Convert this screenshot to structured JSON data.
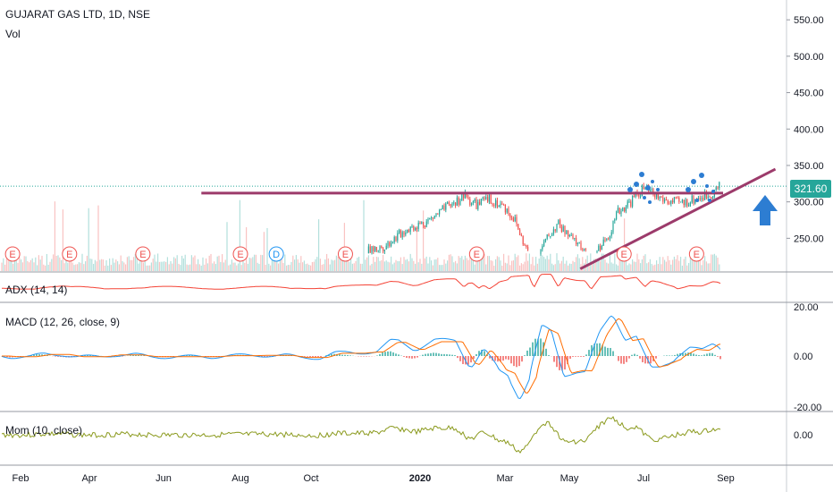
{
  "header": {
    "title": "GUJARAT GAS LTD, 1D, NSE",
    "volume_label": "Vol"
  },
  "price_badge": "321.60",
  "colors": {
    "candle_up": "#26a69a",
    "candle_down": "#ef5350",
    "trendline": "#9c3b6b",
    "arrow": "#2d7dd2",
    "adx": "#f44336",
    "macd": "#2196f3",
    "signal": "#ff6d00",
    "momentum": "#8b9a1e",
    "last_price": "#26a69a",
    "dots": "#2d7dd2"
  },
  "panes": {
    "adx": {
      "label": "ADX (14, 14)"
    },
    "macd": {
      "label": "MACD (12, 26, close, 9)",
      "ticks": [
        "20.00",
        "0.00",
        "-20.00"
      ]
    },
    "mom": {
      "label": "Mom (10, close)",
      "ticks": [
        "0.00"
      ]
    }
  },
  "chart_data": {
    "type": "line",
    "title": "GUJARAT GAS LTD, 1D, NSE",
    "y_ticks": [
      "550.00",
      "500.00",
      "450.00",
      "400.00",
      "350.00",
      "300.00",
      "250.00"
    ],
    "ylim": [
      205,
      560
    ],
    "x_ticks": [
      "Feb",
      "Apr",
      "Jun",
      "Aug",
      "Oct",
      "2020",
      "Mar",
      "May",
      "Jul",
      "Sep"
    ],
    "last_price": 321.6,
    "price_path": [
      {
        "date": "2019-01-10",
        "close": 226
      },
      {
        "date": "2019-02-15",
        "close": 224
      },
      {
        "date": "2019-03-15",
        "close": 228
      },
      {
        "date": "2019-04-15",
        "close": 226
      },
      {
        "date": "2019-05-15",
        "close": 229
      },
      {
        "date": "2019-06-15",
        "close": 227
      },
      {
        "date": "2019-07-15",
        "close": 225
      },
      {
        "date": "2019-08-15",
        "close": 226
      },
      {
        "date": "2019-09-15",
        "close": 228
      },
      {
        "date": "2019-10-15",
        "close": 224
      },
      {
        "date": "2019-11-15",
        "close": 232
      },
      {
        "date": "2019-12-01",
        "close": 238
      },
      {
        "date": "2019-12-20",
        "close": 262
      },
      {
        "date": "2020-01-05",
        "close": 272
      },
      {
        "date": "2020-01-20",
        "close": 292
      },
      {
        "date": "2020-02-01",
        "close": 308
      },
      {
        "date": "2020-02-10",
        "close": 296
      },
      {
        "date": "2020-02-20",
        "close": 304
      },
      {
        "date": "2020-03-01",
        "close": 292
      },
      {
        "date": "2020-03-10",
        "close": 276
      },
      {
        "date": "2020-03-20",
        "close": 238
      },
      {
        "date": "2020-03-30",
        "close": 222
      },
      {
        "date": "2020-04-10",
        "close": 250
      },
      {
        "date": "2020-04-20",
        "close": 270
      },
      {
        "date": "2020-05-01",
        "close": 252
      },
      {
        "date": "2020-05-10",
        "close": 240
      },
      {
        "date": "2020-05-20",
        "close": 226
      },
      {
        "date": "2020-06-01",
        "close": 250
      },
      {
        "date": "2020-06-10",
        "close": 286
      },
      {
        "date": "2020-06-20",
        "close": 300
      },
      {
        "date": "2020-07-01",
        "close": 318
      },
      {
        "date": "2020-07-10",
        "close": 308
      },
      {
        "date": "2020-07-20",
        "close": 300
      },
      {
        "date": "2020-07-30",
        "close": 298
      },
      {
        "date": "2020-08-10",
        "close": 305
      },
      {
        "date": "2020-08-20",
        "close": 310
      },
      {
        "date": "2020-08-28",
        "close": 321.6
      }
    ],
    "resistance_line": {
      "from": {
        "date": "2019-07-01",
        "value": 312
      },
      "to": {
        "date": "2020-08-30",
        "value": 312
      }
    },
    "support_line": {
      "from": {
        "date": "2020-05-10",
        "value": 208
      },
      "to": {
        "date": "2020-10-20",
        "value": 345
      }
    },
    "events": [
      {
        "date": "2019-01-20",
        "label": "E"
      },
      {
        "date": "2019-03-15",
        "label": "E"
      },
      {
        "date": "2019-05-15",
        "label": "E"
      },
      {
        "date": "2019-08-01",
        "label": "E"
      },
      {
        "date": "2019-09-01",
        "label": "D"
      },
      {
        "date": "2019-10-30",
        "label": "E"
      },
      {
        "date": "2020-02-10",
        "label": "E"
      },
      {
        "date": "2020-06-15",
        "label": "E"
      },
      {
        "date": "2020-08-10",
        "label": "E"
      }
    ]
  }
}
